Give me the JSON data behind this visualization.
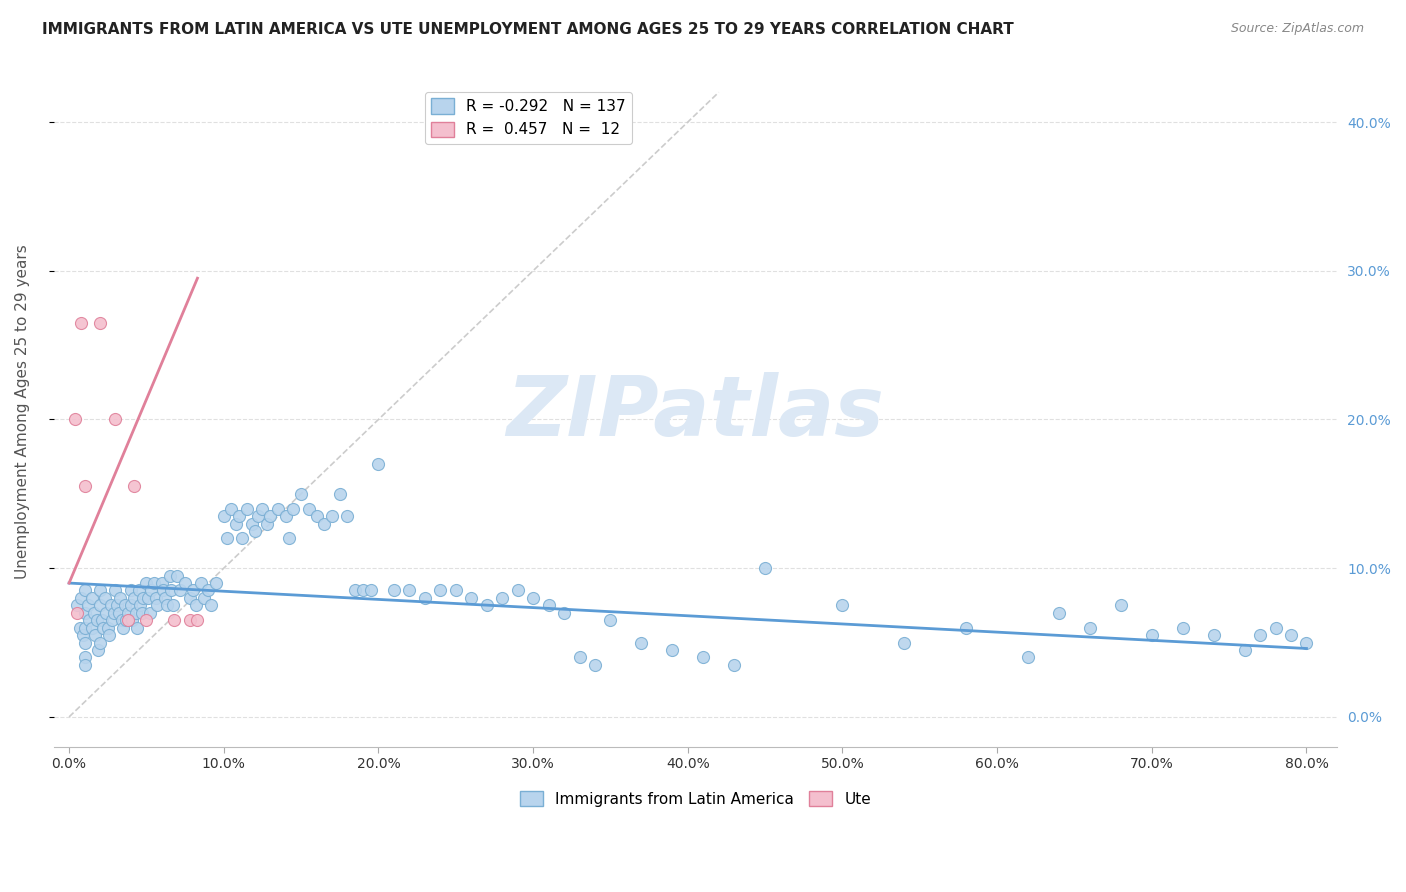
{
  "title": "IMMIGRANTS FROM LATIN AMERICA VS UTE UNEMPLOYMENT AMONG AGES 25 TO 29 YEARS CORRELATION CHART",
  "source": "Source: ZipAtlas.com",
  "ylabel": "Unemployment Among Ages 25 to 29 years",
  "xlim": [
    -0.01,
    0.82
  ],
  "ylim": [
    -0.02,
    0.43
  ],
  "xtick_positions": [
    0.0,
    0.1,
    0.2,
    0.3,
    0.4,
    0.5,
    0.6,
    0.7,
    0.8
  ],
  "xtick_labels": [
    "0.0%",
    "10.0%",
    "20.0%",
    "30.0%",
    "40.0%",
    "50.0%",
    "60.0%",
    "70.0%",
    "80.0%"
  ],
  "ytick_positions": [
    0.0,
    0.1,
    0.2,
    0.3,
    0.4
  ],
  "ytick_labels_right": [
    "0.0%",
    "10.0%",
    "20.0%",
    "30.0%",
    "40.0%"
  ],
  "legend_blue_r": "-0.292",
  "legend_blue_n": "137",
  "legend_pink_r": "0.457",
  "legend_pink_n": "12",
  "blue_color": "#b8d4ed",
  "blue_edge_color": "#7aafd4",
  "pink_color": "#f4bfce",
  "pink_edge_color": "#e0809a",
  "blue_line_color": "#5b9bd5",
  "pink_line_color": "#e0809a",
  "ref_line_color": "#cccccc",
  "grid_color": "#e0e0e0",
  "title_color": "#222222",
  "source_color": "#888888",
  "axis_label_color": "#555555",
  "tick_color_right": "#5b9bd5",
  "watermark_color": "#dce8f5",
  "blue_scatter_x": [
    0.005,
    0.007,
    0.008,
    0.009,
    0.01,
    0.01,
    0.01,
    0.01,
    0.01,
    0.01,
    0.012,
    0.013,
    0.015,
    0.015,
    0.016,
    0.017,
    0.018,
    0.019,
    0.02,
    0.02,
    0.02,
    0.021,
    0.022,
    0.023,
    0.024,
    0.025,
    0.026,
    0.027,
    0.028,
    0.029,
    0.03,
    0.031,
    0.032,
    0.033,
    0.034,
    0.035,
    0.036,
    0.037,
    0.038,
    0.04,
    0.04,
    0.041,
    0.042,
    0.043,
    0.044,
    0.045,
    0.046,
    0.047,
    0.048,
    0.05,
    0.051,
    0.052,
    0.053,
    0.055,
    0.056,
    0.057,
    0.06,
    0.061,
    0.062,
    0.063,
    0.065,
    0.066,
    0.067,
    0.07,
    0.072,
    0.075,
    0.078,
    0.08,
    0.082,
    0.085,
    0.087,
    0.09,
    0.092,
    0.095,
    0.1,
    0.102,
    0.105,
    0.108,
    0.11,
    0.112,
    0.115,
    0.118,
    0.12,
    0.122,
    0.125,
    0.128,
    0.13,
    0.135,
    0.14,
    0.142,
    0.145,
    0.15,
    0.155,
    0.16,
    0.165,
    0.17,
    0.175,
    0.18,
    0.185,
    0.19,
    0.195,
    0.2,
    0.21,
    0.22,
    0.23,
    0.24,
    0.25,
    0.26,
    0.27,
    0.28,
    0.29,
    0.3,
    0.31,
    0.32,
    0.33,
    0.34,
    0.35,
    0.37,
    0.39,
    0.41,
    0.43,
    0.45,
    0.5,
    0.54,
    0.58,
    0.62,
    0.64,
    0.66,
    0.68,
    0.7,
    0.72,
    0.74,
    0.76,
    0.77,
    0.78,
    0.79,
    0.8
  ],
  "blue_scatter_y": [
    0.075,
    0.06,
    0.08,
    0.055,
    0.085,
    0.07,
    0.06,
    0.05,
    0.04,
    0.035,
    0.075,
    0.065,
    0.08,
    0.06,
    0.07,
    0.055,
    0.065,
    0.045,
    0.085,
    0.075,
    0.05,
    0.065,
    0.06,
    0.08,
    0.07,
    0.06,
    0.055,
    0.075,
    0.065,
    0.07,
    0.085,
    0.075,
    0.07,
    0.08,
    0.065,
    0.06,
    0.075,
    0.065,
    0.07,
    0.085,
    0.075,
    0.065,
    0.08,
    0.07,
    0.06,
    0.085,
    0.075,
    0.07,
    0.08,
    0.09,
    0.08,
    0.07,
    0.085,
    0.09,
    0.08,
    0.075,
    0.09,
    0.085,
    0.08,
    0.075,
    0.095,
    0.085,
    0.075,
    0.095,
    0.085,
    0.09,
    0.08,
    0.085,
    0.075,
    0.09,
    0.08,
    0.085,
    0.075,
    0.09,
    0.135,
    0.12,
    0.14,
    0.13,
    0.135,
    0.12,
    0.14,
    0.13,
    0.125,
    0.135,
    0.14,
    0.13,
    0.135,
    0.14,
    0.135,
    0.12,
    0.14,
    0.15,
    0.14,
    0.135,
    0.13,
    0.135,
    0.15,
    0.135,
    0.085,
    0.085,
    0.085,
    0.17,
    0.085,
    0.085,
    0.08,
    0.085,
    0.085,
    0.08,
    0.075,
    0.08,
    0.085,
    0.08,
    0.075,
    0.07,
    0.04,
    0.035,
    0.065,
    0.05,
    0.045,
    0.04,
    0.035,
    0.1,
    0.075,
    0.05,
    0.06,
    0.04,
    0.07,
    0.06,
    0.075,
    0.055,
    0.06,
    0.055,
    0.045,
    0.055,
    0.06,
    0.055,
    0.05
  ],
  "pink_scatter_x": [
    0.004,
    0.005,
    0.008,
    0.01,
    0.02,
    0.03,
    0.038,
    0.042,
    0.05,
    0.068,
    0.078,
    0.083
  ],
  "pink_scatter_y": [
    0.2,
    0.07,
    0.265,
    0.155,
    0.265,
    0.2,
    0.065,
    0.155,
    0.065,
    0.065,
    0.065,
    0.065
  ],
  "blue_trend_x0": 0.0,
  "blue_trend_x1": 0.8,
  "blue_trend_y0": 0.09,
  "blue_trend_y1": 0.046,
  "pink_trend_x0": 0.0,
  "pink_trend_x1": 0.083,
  "pink_trend_y0": 0.09,
  "pink_trend_y1": 0.295,
  "ref_line_x0": 0.0,
  "ref_line_x1": 0.42,
  "ref_line_y0": 0.0,
  "ref_line_y1": 0.42
}
